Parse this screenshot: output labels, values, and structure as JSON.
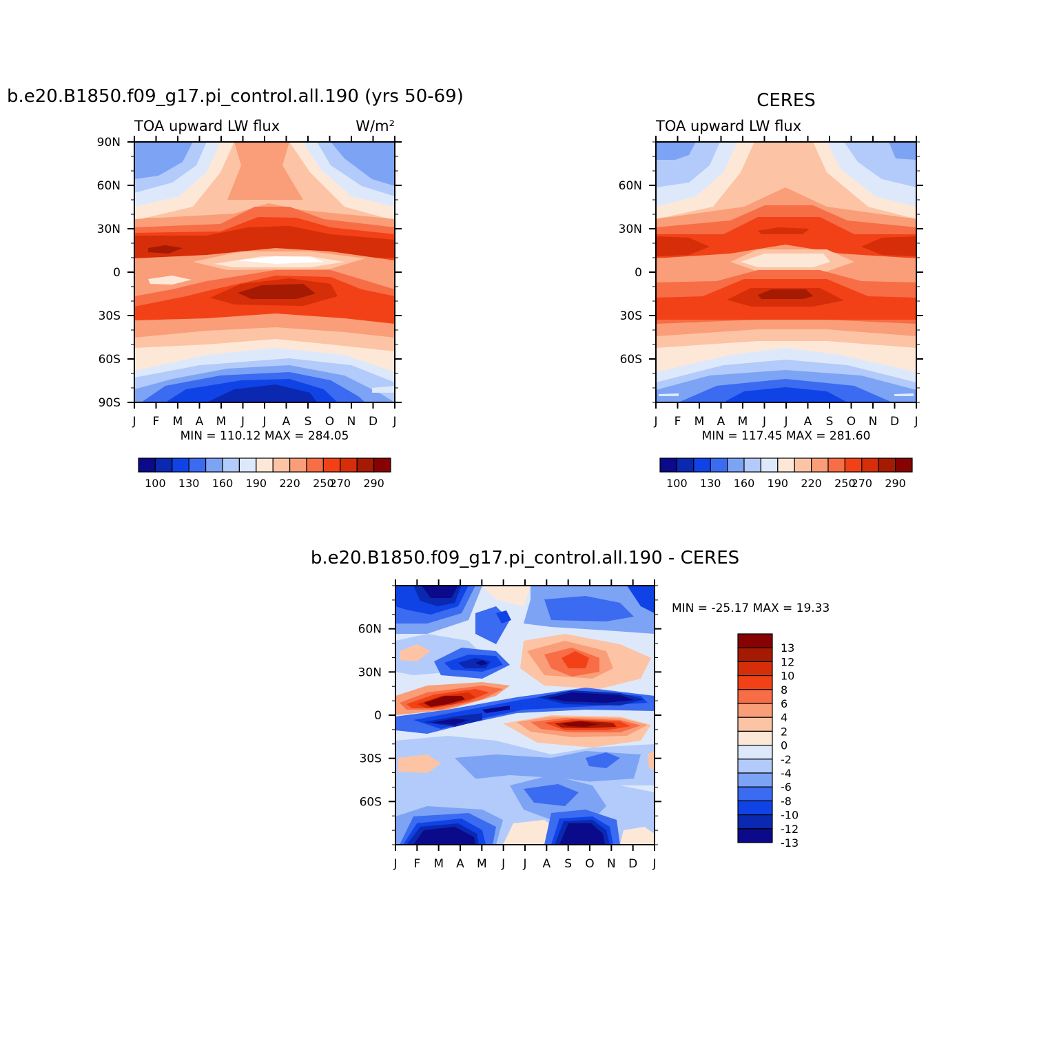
{
  "chart_data": [
    {
      "type": "heatmap",
      "title": "b.e20.B1850.f09_g17.pi_control.all.190 (yrs 50-69)",
      "left_label": "TOA upward LW flux",
      "right_label": "W/m²",
      "x_tick_labels": [
        "J",
        "F",
        "M",
        "A",
        "M",
        "J",
        "J",
        "A",
        "S",
        "O",
        "N",
        "D",
        "J"
      ],
      "y_tick_labels": [
        "90N",
        "60N",
        "30N",
        "0",
        "30S",
        "60S",
        "90S"
      ],
      "ylim": [
        -90,
        90
      ],
      "stats": "MIN =  110.12  MAX =  284.05",
      "min": 110.12,
      "max": 284.05,
      "colorbar": {
        "colors": [
          "#0a0a8a",
          "#0b28b0",
          "#1043e6",
          "#3a6bf0",
          "#7da3f5",
          "#b3cbfa",
          "#dde9fb",
          "#fde8d8",
          "#fcc4a4",
          "#f99e78",
          "#f76d45",
          "#f24117",
          "#d52e08",
          "#a51a02",
          "#870202"
        ],
        "labels": [
          "100",
          "130",
          "160",
          "190",
          "220",
          "250",
          "270",
          "290"
        ],
        "label_after_box": [
          1,
          3,
          5,
          7,
          9,
          11,
          12,
          14
        ]
      }
    },
    {
      "type": "heatmap",
      "title": "CERES",
      "left_label": "TOA upward LW flux",
      "x_tick_labels": [
        "J",
        "F",
        "M",
        "A",
        "M",
        "J",
        "J",
        "A",
        "S",
        "O",
        "N",
        "D",
        "J"
      ],
      "y_tick_labels": [
        "60N",
        "30N",
        "0",
        "30S",
        "60S"
      ],
      "ylim": [
        -90,
        90
      ],
      "stats": "MIN =  117.45  MAX =  281.60",
      "min": 117.45,
      "max": 281.6,
      "colorbar": {
        "colors": [
          "#0a0a8a",
          "#0b28b0",
          "#1043e6",
          "#3a6bf0",
          "#7da3f5",
          "#b3cbfa",
          "#dde9fb",
          "#fde8d8",
          "#fcc4a4",
          "#f99e78",
          "#f76d45",
          "#f24117",
          "#d52e08",
          "#a51a02",
          "#870202"
        ],
        "labels": [
          "100",
          "130",
          "160",
          "190",
          "220",
          "250",
          "270",
          "290"
        ],
        "label_after_box": [
          1,
          3,
          5,
          7,
          9,
          11,
          12,
          14
        ]
      }
    },
    {
      "type": "heatmap",
      "title": "b.e20.B1850.f09_g17.pi_control.all.190 - CERES",
      "x_tick_labels": [
        "J",
        "F",
        "M",
        "A",
        "M",
        "J",
        "J",
        "A",
        "S",
        "O",
        "N",
        "D",
        "J"
      ],
      "y_tick_labels": [
        "60N",
        "30N",
        "0",
        "30S",
        "60S"
      ],
      "ylim": [
        -90,
        90
      ],
      "stats": "MIN = -25.17  MAX =   19.33",
      "min": -25.17,
      "max": 19.33,
      "colorbar": {
        "colors": [
          "#870202",
          "#a51a02",
          "#d52e08",
          "#f24117",
          "#f76d45",
          "#f99e78",
          "#fcc4a4",
          "#fde8d8",
          "#dde9fb",
          "#b3cbfa",
          "#7da3f5",
          "#3a6bf0",
          "#1043e6",
          "#0b28b0",
          "#0a0a8a"
        ],
        "labels": [
          "13",
          "12",
          "10",
          "8",
          "6",
          "4",
          "2",
          "0",
          "-2",
          "-4",
          "-6",
          "-8",
          "-10",
          "-12",
          "-13"
        ]
      }
    }
  ]
}
